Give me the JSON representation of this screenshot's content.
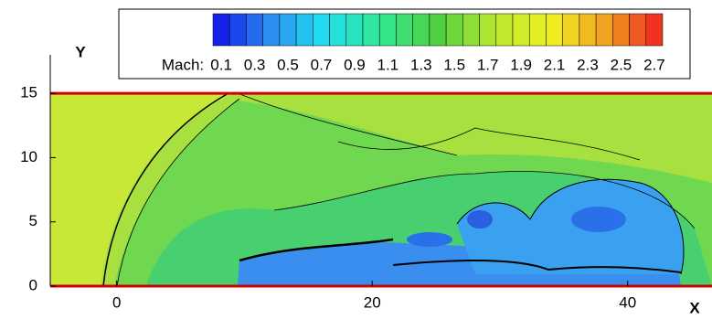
{
  "chart_data": {
    "type": "contour",
    "xlabel": "X",
    "ylabel": "Y",
    "xlim": [
      -5.2,
      46.6
    ],
    "ylim": [
      0,
      18
    ],
    "xticks": [
      0,
      20,
      40
    ],
    "yticks": [
      0,
      5,
      10,
      15
    ],
    "domain_ylim": [
      0,
      15
    ],
    "boundary_color": "#d00000",
    "colorbar": {
      "title": "Mach:",
      "range": [
        0.05,
        2.75
      ],
      "step": 0.1,
      "ticks": [
        0.1,
        0.3,
        0.5,
        0.7,
        0.9,
        1.1,
        1.3,
        1.5,
        1.7,
        1.9,
        2.1,
        2.3,
        2.5,
        2.7
      ],
      "colormap": [
        "#1010e8",
        "#2a8cf0",
        "#20e0f0",
        "#30e890",
        "#50d040",
        "#b8e830",
        "#f0f020",
        "#f0a020",
        "#f02020"
      ]
    }
  }
}
